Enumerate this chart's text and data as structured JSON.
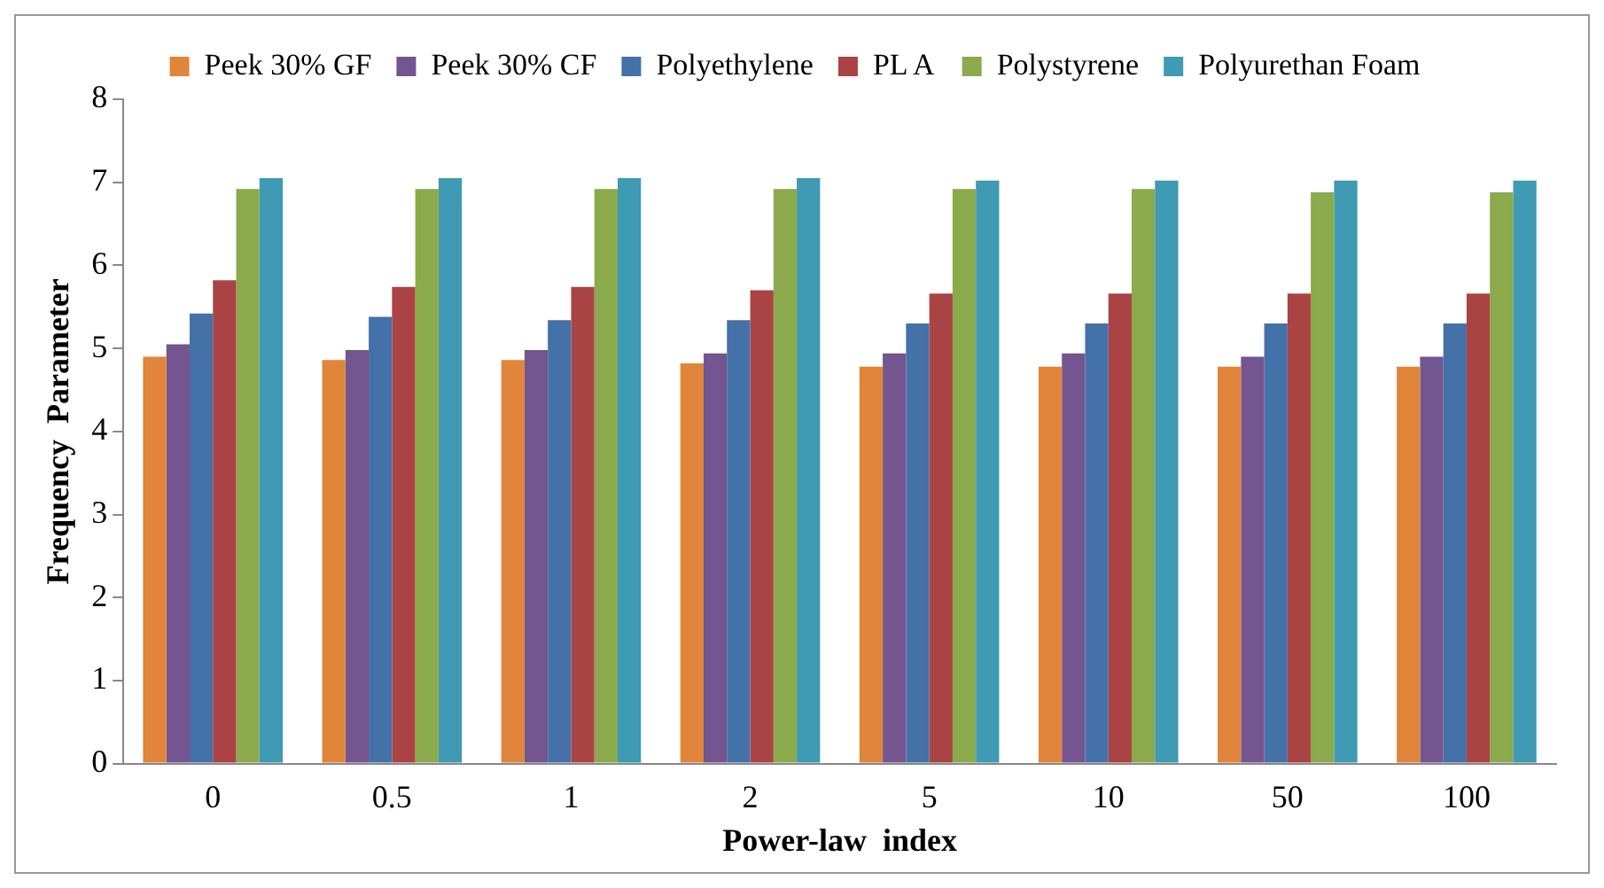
{
  "chart_data": {
    "type": "bar",
    "xlabel": "Power-law  index",
    "ylabel": "Frequency  Parameter",
    "categories": [
      "0",
      "0.5",
      "1",
      "2",
      "5",
      "10",
      "50",
      "100"
    ],
    "series": [
      {
        "name": "Peek 30% GF",
        "color": "#e0853a",
        "values": [
          4.9,
          4.86,
          4.86,
          4.82,
          4.78,
          4.78,
          4.78,
          4.78
        ]
      },
      {
        "name": "Peek 30% CF",
        "color": "#735590",
        "values": [
          5.05,
          4.98,
          4.98,
          4.94,
          4.94,
          4.94,
          4.9,
          4.9
        ]
      },
      {
        "name": "Polyethylene",
        "color": "#4471a8",
        "values": [
          5.42,
          5.38,
          5.34,
          5.34,
          5.3,
          5.3,
          5.3,
          5.3
        ]
      },
      {
        "name": "PL A",
        "color": "#aa4444",
        "values": [
          5.82,
          5.74,
          5.74,
          5.7,
          5.66,
          5.66,
          5.66,
          5.66
        ]
      },
      {
        "name": "Polystyrene",
        "color": "#8aaa4c",
        "values": [
          6.92,
          6.92,
          6.92,
          6.92,
          6.92,
          6.92,
          6.88,
          6.88
        ]
      },
      {
        "name": "Polyurethan Foam",
        "color": "#3f9ab3",
        "values": [
          7.05,
          7.05,
          7.05,
          7.05,
          7.02,
          7.02,
          7.02,
          7.02
        ]
      }
    ],
    "ylim": [
      0,
      8
    ],
    "yticks": [
      0,
      1,
      2,
      3,
      4,
      5,
      6,
      7,
      8
    ],
    "grid": false,
    "legend": "top"
  }
}
